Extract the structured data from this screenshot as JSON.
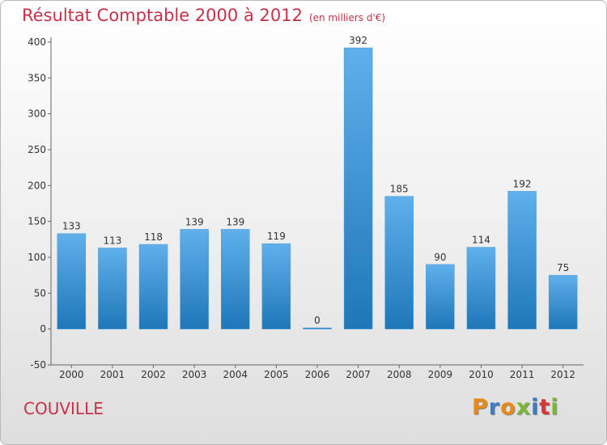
{
  "header": {
    "title": "Résultat Comptable 2000 à 2012",
    "subtitle": "(en milliers d'€)"
  },
  "footer": {
    "commune": "COUVILLE",
    "logo": "Proxiti"
  },
  "colors": {
    "bar_top": "#5fb0eb",
    "bar_bottom": "#1f77b8",
    "title": "#c4324a"
  },
  "chart_data": {
    "type": "bar",
    "title": "Résultat Comptable 2000 à 2012",
    "subtitle": "(en milliers d'€)",
    "categories": [
      "2000",
      "2001",
      "2002",
      "2003",
      "2004",
      "2005",
      "2006",
      "2007",
      "2008",
      "2009",
      "2010",
      "2011",
      "2012"
    ],
    "values": [
      133,
      113,
      118,
      139,
      139,
      119,
      0,
      392,
      185,
      90,
      114,
      192,
      75
    ],
    "value_labels": [
      "133",
      "113",
      "118",
      "139",
      "139",
      "119",
      "0",
      "392",
      "185",
      "90",
      "114",
      "192",
      "75"
    ],
    "yticks": [
      "-50",
      "0",
      "50",
      "100",
      "150",
      "200",
      "250",
      "300",
      "350",
      "400"
    ],
    "ylim": [
      -50,
      400
    ],
    "grid": false,
    "legend": "none"
  }
}
